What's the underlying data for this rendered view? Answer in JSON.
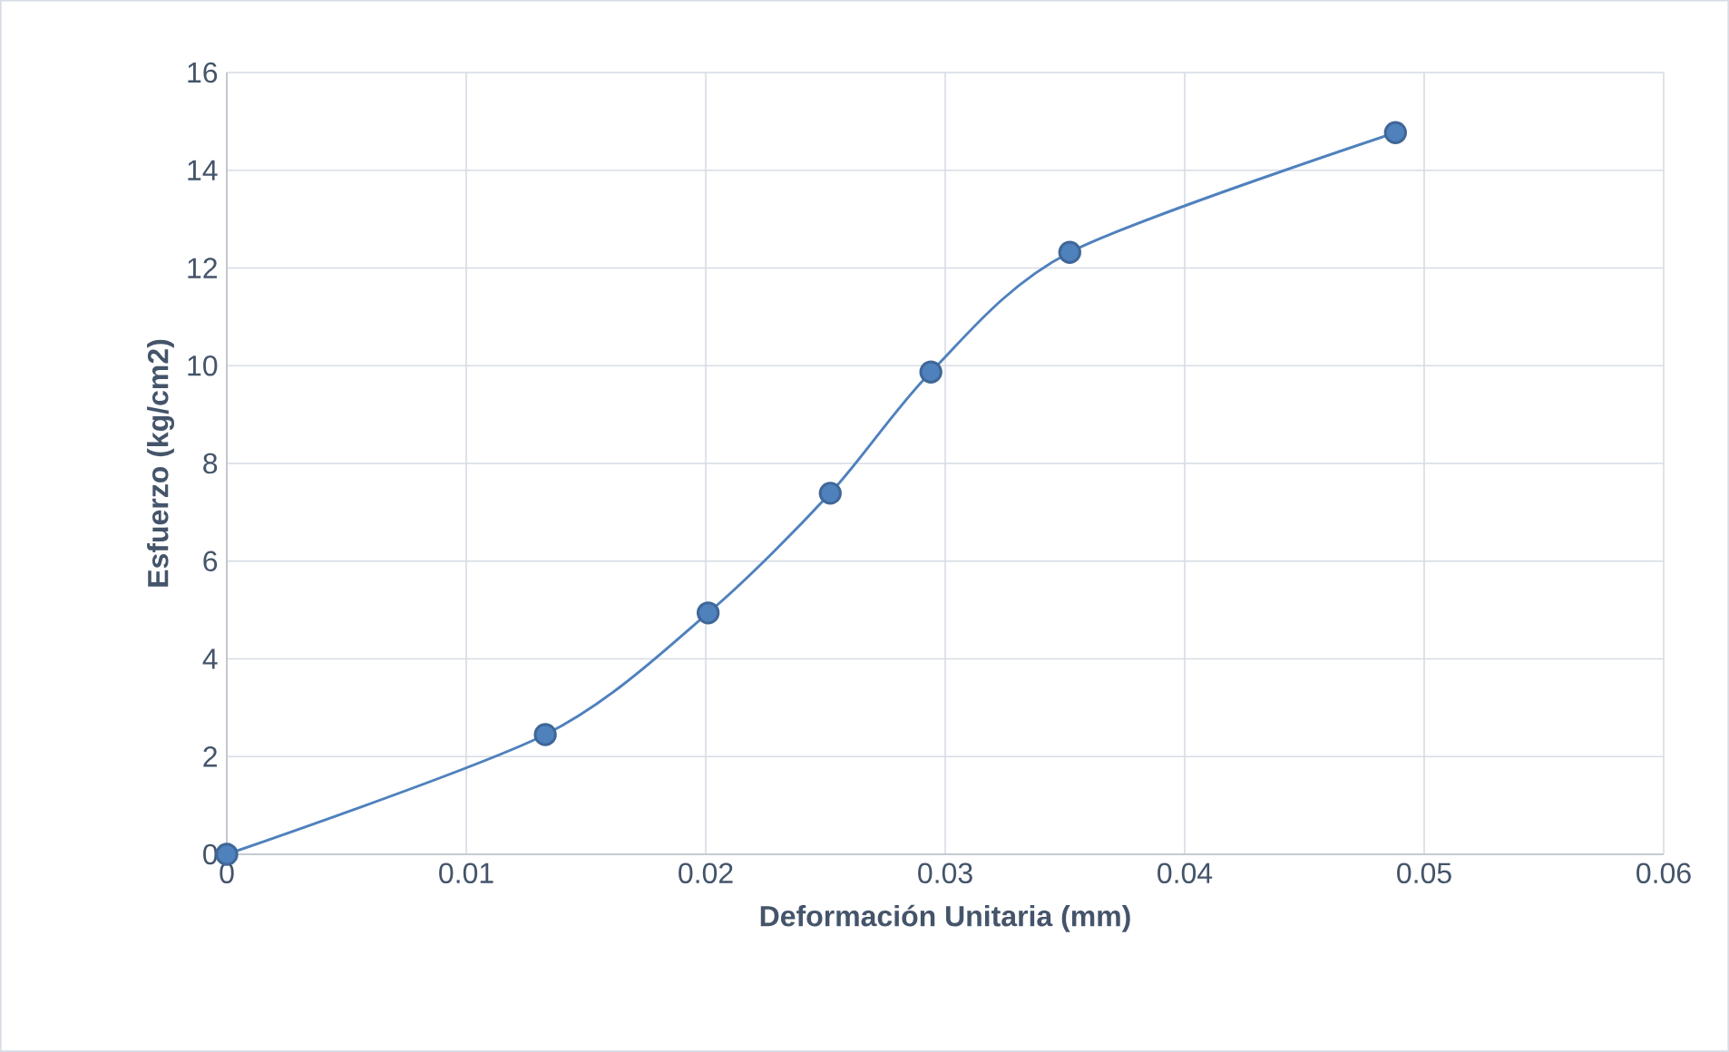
{
  "chart_data": {
    "type": "line",
    "xlabel": "Deformación Unitaria (mm)",
    "ylabel": "Esfuerzo (kg/cm2)",
    "x": [
      0,
      0.0133,
      0.0201,
      0.0252,
      0.0294,
      0.0352,
      0.0488
    ],
    "series": [
      {
        "color": "#4f81bd",
        "values": [
          0,
          2.45,
          4.94,
          7.39,
          9.87,
          12.32,
          14.77
        ]
      }
    ],
    "xlim": [
      0,
      0.06
    ],
    "xticks": [
      0,
      0.01,
      0.02,
      0.03,
      0.04,
      0.05,
      0.06
    ],
    "ylim": [
      0,
      16
    ],
    "yticks": [
      0,
      2,
      4,
      6,
      8,
      10,
      12,
      14,
      16
    ],
    "grid": true,
    "marker": "circle",
    "line_style": "solid"
  }
}
